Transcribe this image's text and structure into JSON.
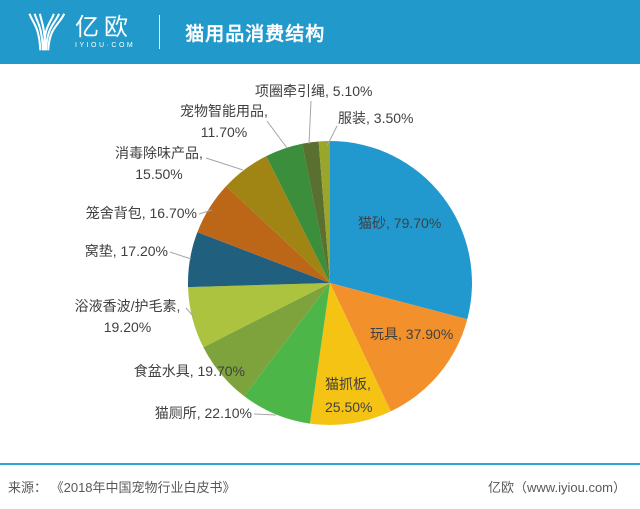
{
  "header": {
    "logo_text": "亿欧",
    "logo_sub": "IYIOU·COM",
    "title": "猫用品消费结构",
    "bg_color": "#2199CB"
  },
  "chart_data": {
    "type": "pie",
    "title": "猫用品消费结构",
    "unit": "%",
    "direction": "clockwise",
    "start_angle_deg": 0,
    "center": [
      330,
      283
    ],
    "radius": 142,
    "categories": [
      "猫砂",
      "玩具",
      "猫抓板",
      "猫厕所",
      "食盆水具",
      "浴液香波/护毛素",
      "窝垫",
      "笼舍背包",
      "消毒除味产品",
      "宠物智能用品",
      "项圈牵引绳",
      "服装"
    ],
    "values": [
      79.7,
      37.9,
      25.5,
      22.1,
      19.7,
      19.2,
      17.2,
      16.7,
      15.5,
      11.7,
      5.1,
      3.5
    ],
    "colors": [
      "#2299CE",
      "#F2912C",
      "#F5C313",
      "#4CB748",
      "#7FA33C",
      "#ABC33E",
      "#20607E",
      "#BC6617",
      "#A08414",
      "#3A8E3C",
      "#5A7031",
      "#9AA52C"
    ],
    "label_lines": [
      [
        "猫砂, 79.70%"
      ],
      [
        "玩具, 37.90%"
      ],
      [
        "猫抓板,",
        "25.50%"
      ],
      [
        "猫厕所, 22.10%"
      ],
      [
        "食盆水具, 19.70%"
      ],
      [
        "浴液香波/护毛素,",
        "19.20%"
      ],
      [
        "窝垫, 17.20%"
      ],
      [
        "笼舍背包, 16.70%"
      ],
      [
        "消毒除味产品,",
        "15.50%"
      ],
      [
        "宠物智能用品,",
        "11.70%"
      ],
      [
        "项圈牵引绳, 5.10%"
      ],
      [
        "服装, 3.50%"
      ]
    ]
  },
  "footer": {
    "source": "来源： 《2018年中国宠物行业白皮书》",
    "credit": "亿欧（www.iyiou.com）"
  }
}
